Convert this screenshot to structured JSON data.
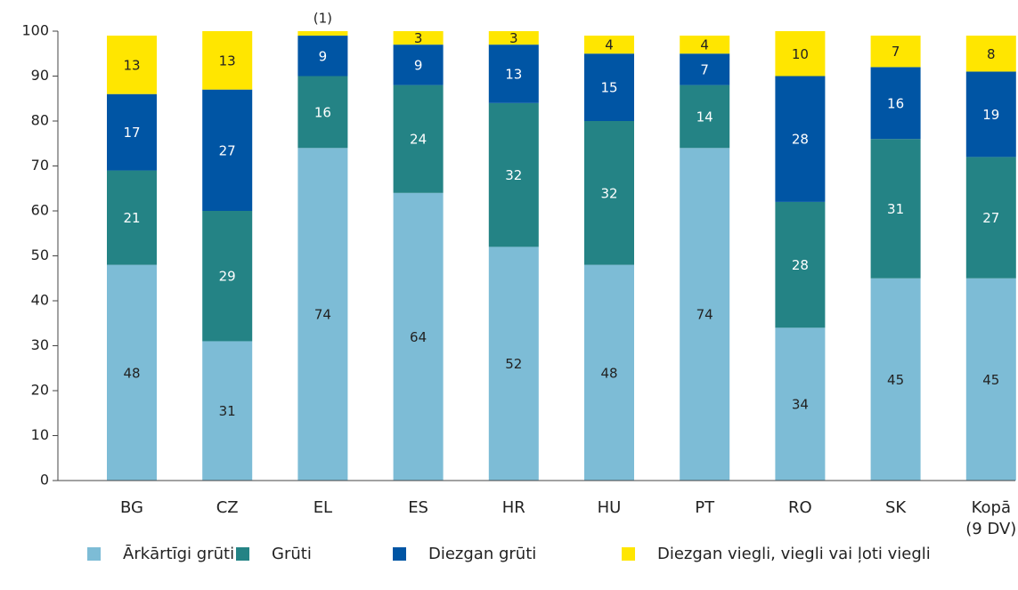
{
  "chart_data": {
    "type": "stacked_bar",
    "categories": [
      "BG",
      "CZ",
      "EL",
      "ES",
      "HR",
      "HU",
      "PT",
      "RO",
      "SK",
      "Kopā (9 DV)"
    ],
    "series": [
      {
        "name": "Ārkārtīgi grūti",
        "color": "#7dbcd6",
        "values": [
          48,
          31,
          74,
          64,
          52,
          48,
          74,
          34,
          45,
          45
        ]
      },
      {
        "name": "Grūti",
        "color": "#248385",
        "values": [
          21,
          29,
          16,
          24,
          32,
          32,
          14,
          28,
          31,
          27
        ]
      },
      {
        "name": "Diezgan grūti",
        "color": "#0055a4",
        "values": [
          17,
          27,
          9,
          9,
          13,
          15,
          7,
          28,
          16,
          19
        ]
      },
      {
        "name": "Diezgan viegli, viegli vai ļoti viegli",
        "color": "#ffe600",
        "values": [
          13,
          13,
          1,
          3,
          3,
          4,
          4,
          10,
          7,
          8
        ],
        "value_labels": [
          "13",
          "13",
          "(1)",
          "3",
          "3",
          "4",
          "4",
          "10",
          "7",
          "8"
        ]
      }
    ],
    "ylim": [
      0,
      100
    ],
    "yticks": [
      0,
      10,
      20,
      30,
      40,
      50,
      60,
      70,
      80,
      90,
      100
    ],
    "legend": "bottom"
  }
}
